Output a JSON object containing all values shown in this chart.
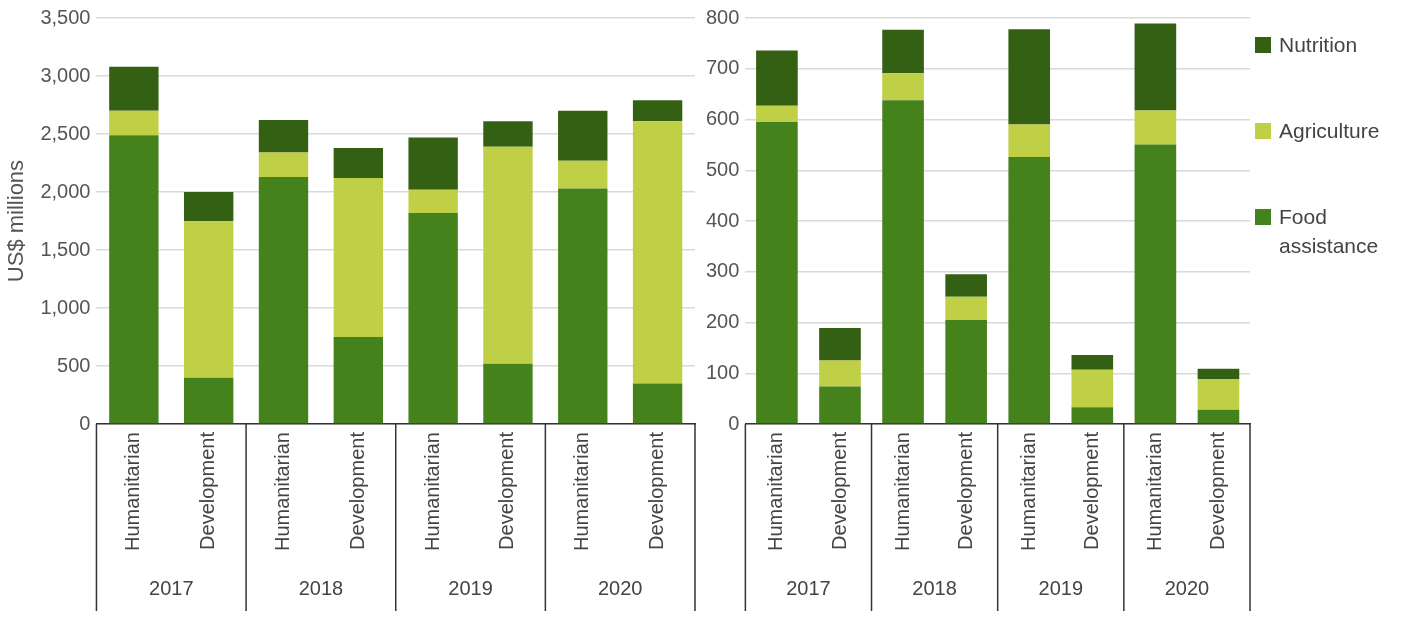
{
  "chart_data": [
    {
      "type": "bar",
      "ylabel": "US$ millions",
      "stacked": true,
      "categories": [
        "Humanitarian",
        "Development",
        "Humanitarian",
        "Development",
        "Humanitarian",
        "Development",
        "Humanitarian",
        "Development"
      ],
      "series": [
        {
          "color": "#46821c",
          "values": [
            2490,
            400,
            2130,
            750,
            1820,
            520,
            2030,
            350
          ]
        },
        {
          "color": "#bfcf46",
          "values": [
            210,
            1350,
            210,
            1370,
            200,
            1870,
            240,
            2260
          ]
        },
        {
          "color": "#346014",
          "values": [
            380,
            250,
            280,
            260,
            450,
            220,
            430,
            180
          ]
        }
      ],
      "ylim": [
        0,
        3500
      ],
      "yticks": [
        0,
        500,
        {
          "value": 1000,
          "label": "1,000"
        },
        {
          "value": 1500,
          "label": "1,500"
        },
        {
          "value": 2000,
          "label": "2,000"
        },
        {
          "value": 2500,
          "label": "2,500"
        },
        {
          "value": 3000,
          "label": "3,000"
        },
        {
          "value": 3500,
          "label": "3,500"
        }
      ],
      "grid": "y",
      "legend": false,
      "annotations": [
        "2017",
        "2018",
        "2019",
        "2020"
      ]
    },
    {
      "type": "bar",
      "stacked": true,
      "categories": [
        "Humanitarian",
        "Development",
        "Humanitarian",
        "Development",
        "Humanitarian",
        "Development",
        "Humanitarian",
        "Development"
      ],
      "series": [
        {
          "name": "Food assistance",
          "color": "#46821c",
          "values": [
            595,
            74,
            638,
            205,
            526,
            33,
            551,
            28
          ]
        },
        {
          "name": "Agriculture",
          "color": "#bfcf46",
          "values": [
            32,
            51,
            53,
            46,
            64,
            74,
            67,
            61
          ]
        },
        {
          "name": "Nutrition",
          "color": "#346014",
          "values": [
            109,
            64,
            86,
            44,
            188,
            29,
            171,
            20
          ]
        }
      ],
      "ylim": [
        0,
        800
      ],
      "yticks": [
        0,
        100,
        200,
        300,
        400,
        500,
        600,
        700,
        800
      ],
      "grid": "y",
      "legend": "right",
      "annotations": [
        "2017",
        "2018",
        "2019",
        "2020"
      ]
    }
  ]
}
